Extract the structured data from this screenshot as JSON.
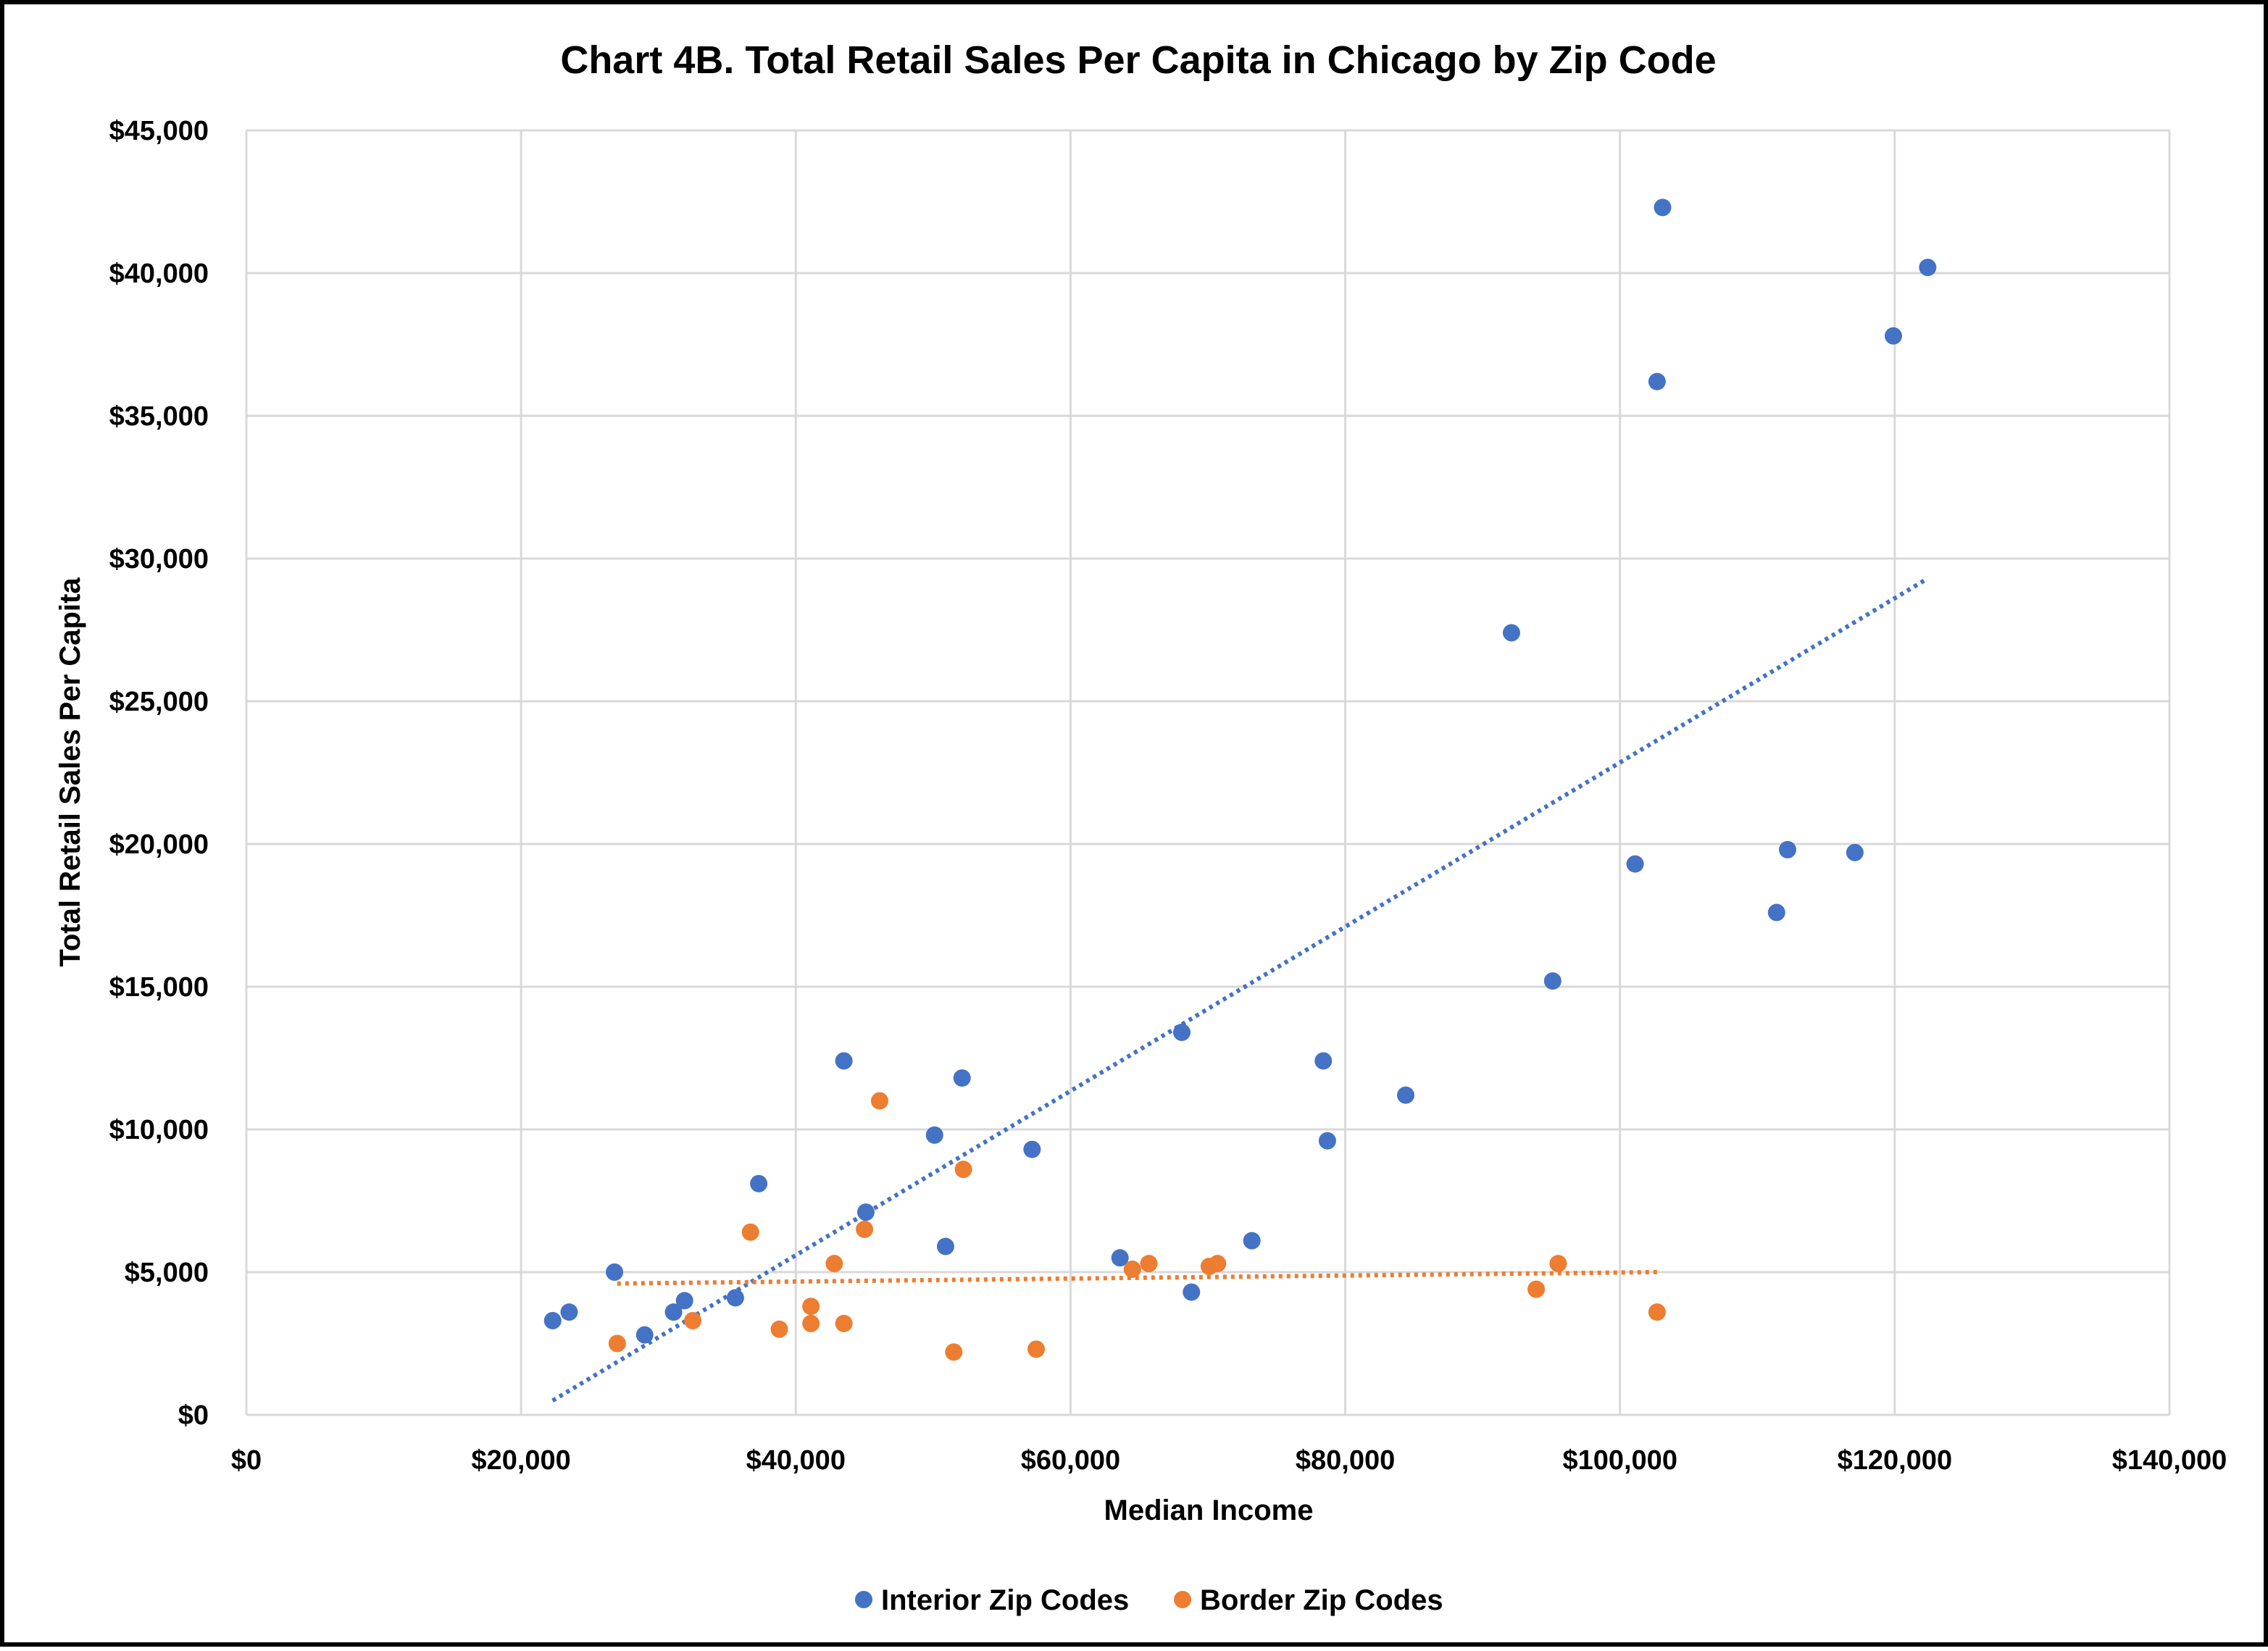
{
  "chart_data": {
    "type": "scatter",
    "title": "Chart 4B. Total Retail Sales Per Capita in Chicago by Zip Code",
    "xlabel": "Median Income",
    "ylabel": "Total Retail Sales Per Capita",
    "xlim": [
      0,
      140000
    ],
    "ylim": [
      0,
      45000
    ],
    "x_ticks": [
      0,
      20000,
      40000,
      60000,
      80000,
      100000,
      120000,
      140000
    ],
    "x_tick_labels": [
      "$0",
      "$20,000",
      "$40,000",
      "$60,000",
      "$80,000",
      "$100,000",
      "$120,000",
      "$140,000"
    ],
    "y_ticks": [
      0,
      5000,
      10000,
      15000,
      20000,
      25000,
      30000,
      35000,
      40000,
      45000
    ],
    "y_tick_labels": [
      "$0",
      "$5,000",
      "$10,000",
      "$15,000",
      "$20,000",
      "$25,000",
      "$30,000",
      "$35,000",
      "$40,000",
      "$45,000"
    ],
    "grid": true,
    "legend_position": "bottom",
    "series": [
      {
        "name": "Interior Zip Codes",
        "color": "#4472C4",
        "points": [
          [
            22300,
            3300
          ],
          [
            23500,
            3600
          ],
          [
            26800,
            5000
          ],
          [
            29000,
            2800
          ],
          [
            31100,
            3600
          ],
          [
            31900,
            4000
          ],
          [
            35600,
            4100
          ],
          [
            37300,
            8100
          ],
          [
            43500,
            12400
          ],
          [
            45100,
            7100
          ],
          [
            50100,
            9800
          ],
          [
            50900,
            5900
          ],
          [
            52100,
            11800
          ],
          [
            57200,
            9300
          ],
          [
            63600,
            5500
          ],
          [
            68100,
            13400
          ],
          [
            68800,
            4300
          ],
          [
            73200,
            6100
          ],
          [
            78400,
            12400
          ],
          [
            78700,
            9600
          ],
          [
            84400,
            11200
          ],
          [
            92100,
            27400
          ],
          [
            95100,
            15200
          ],
          [
            101100,
            19300
          ],
          [
            102700,
            36200
          ],
          [
            103100,
            42300
          ],
          [
            111400,
            17600
          ],
          [
            112200,
            19800
          ],
          [
            117100,
            19700
          ],
          [
            119900,
            37800
          ],
          [
            122400,
            40200
          ]
        ],
        "trendline": {
          "style": "dotted linear",
          "x": [
            22300,
            122400
          ],
          "y": [
            500,
            29300
          ]
        }
      },
      {
        "name": "Border Zip Codes",
        "color": "#ED7D31",
        "points": [
          [
            27000,
            2500
          ],
          [
            32500,
            3300
          ],
          [
            36700,
            6400
          ],
          [
            38800,
            3000
          ],
          [
            41100,
            3800
          ],
          [
            41100,
            3200
          ],
          [
            42800,
            5300
          ],
          [
            43500,
            3200
          ],
          [
            45000,
            6500
          ],
          [
            46100,
            11000
          ],
          [
            51500,
            2200
          ],
          [
            52200,
            8600
          ],
          [
            57500,
            2300
          ],
          [
            64500,
            5100
          ],
          [
            65700,
            5300
          ],
          [
            70100,
            5200
          ],
          [
            70700,
            5300
          ],
          [
            93900,
            4400
          ],
          [
            95500,
            5300
          ],
          [
            102700,
            3600
          ]
        ],
        "trendline": {
          "style": "dotted linear",
          "x": [
            27000,
            102700
          ],
          "y": [
            4600,
            5000
          ]
        }
      }
    ]
  }
}
